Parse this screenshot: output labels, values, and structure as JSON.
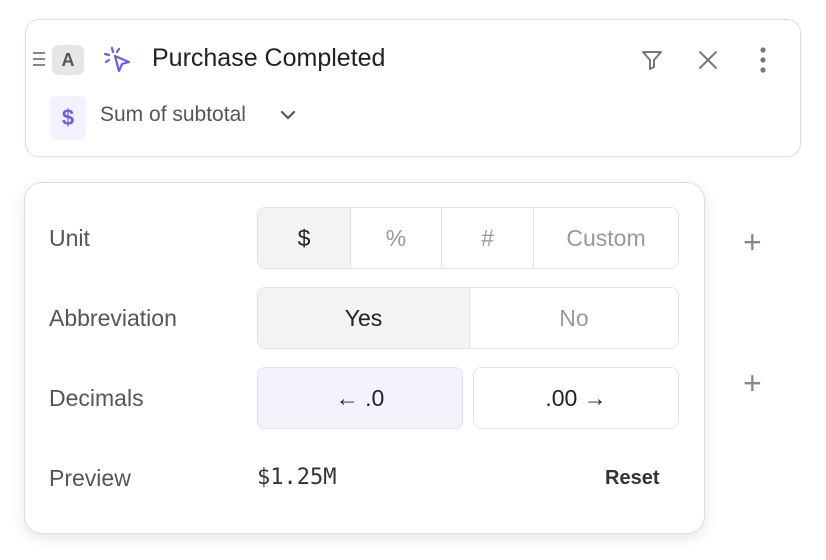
{
  "event_card": {
    "badge": "A",
    "title": "Purchase Completed",
    "metric_badge": "$",
    "metric_label": "Sum of subtotal"
  },
  "format_popover": {
    "unit": {
      "label": "Unit",
      "options": [
        "$",
        "%",
        "#",
        "Custom"
      ],
      "selected": "$"
    },
    "abbreviation": {
      "label": "Abbreviation",
      "options": [
        "Yes",
        "No"
      ],
      "selected": "Yes"
    },
    "decimals": {
      "label": "Decimals",
      "decrease": "← .0",
      "increase": ".00 →"
    },
    "preview": {
      "label": "Preview",
      "value": "$1.25M",
      "reset": "Reset"
    }
  },
  "colors": {
    "accent": "#6a5cf0",
    "accent_bg": "#f3f1fe"
  }
}
